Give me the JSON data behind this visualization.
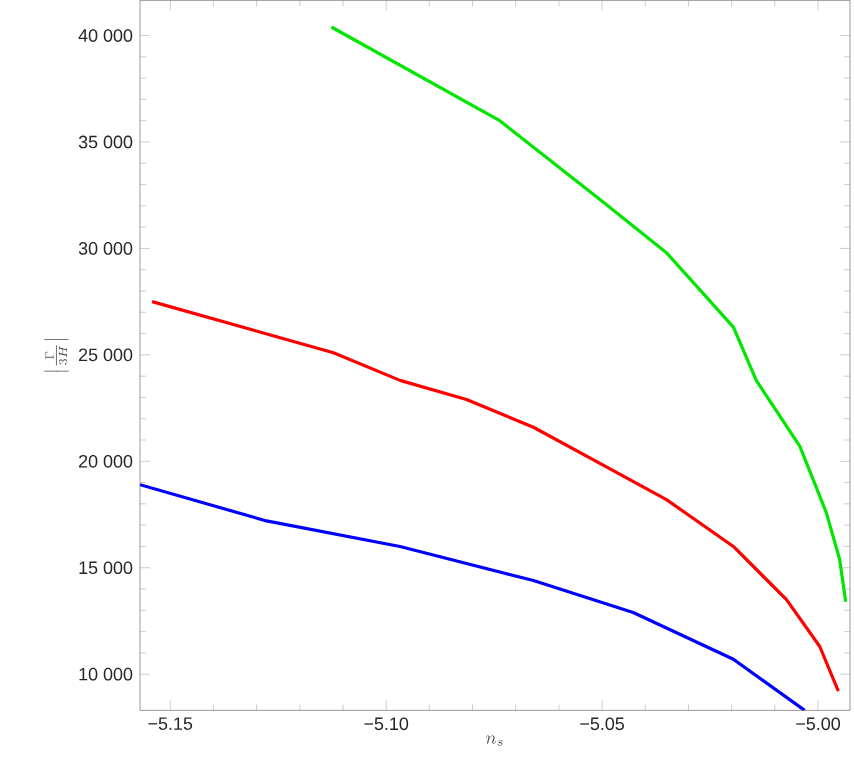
{
  "chart_data": {
    "type": "line",
    "xlabel": "n_s",
    "ylabel": "\\left|\\frac{\\Gamma}{3H}\\right|",
    "xlim": [
      -5.157,
      -4.9926
    ],
    "ylim": [
      8300,
      41650
    ],
    "xticks": [
      {
        "value": -5.15,
        "label": "−5.15"
      },
      {
        "value": -5.1,
        "label": "−5.10"
      },
      {
        "value": -5.05,
        "label": "−5.05"
      },
      {
        "value": -5.0,
        "label": "−5.00"
      }
    ],
    "yticks": [
      {
        "value": 10000,
        "label": "10 000"
      },
      {
        "value": 15000,
        "label": "15 000"
      },
      {
        "value": 20000,
        "label": "20 000"
      },
      {
        "value": 25000,
        "label": "25 000"
      },
      {
        "value": 30000,
        "label": "30 000"
      },
      {
        "value": 35000,
        "label": "35 000"
      },
      {
        "value": 40000,
        "label": "40 000"
      }
    ],
    "marker": "none",
    "line_style": "solid",
    "series": [
      {
        "color": "#00e600",
        "x": [
          -5.1127,
          -5.0737,
          -5.0505,
          -5.0351,
          -5.0196,
          -5.0143,
          -5.0042,
          -4.9981,
          -4.995,
          -4.9936
        ],
        "values": [
          40400,
          36000,
          32300,
          29800,
          26300,
          23800,
          20700,
          17600,
          15400,
          13400
        ]
      },
      {
        "color": "#ff0000",
        "x": [
          -5.1542,
          -5.1122,
          -5.0968,
          -5.0814,
          -5.0659,
          -5.0505,
          -5.0351,
          -5.0196,
          -5.0073,
          -4.9996,
          -4.9953
        ],
        "values": [
          27500,
          25100,
          23800,
          22900,
          21600,
          19900,
          18200,
          16000,
          13500,
          11300,
          9200
        ]
      },
      {
        "color": "#0000ff",
        "x": [
          -5.157,
          -5.1277,
          -5.0968,
          -5.0659,
          -5.0428,
          -5.0196,
          -5.0031
        ],
        "values": [
          18900,
          17200,
          16000,
          14400,
          12900,
          10700,
          8300
        ]
      }
    ]
  }
}
